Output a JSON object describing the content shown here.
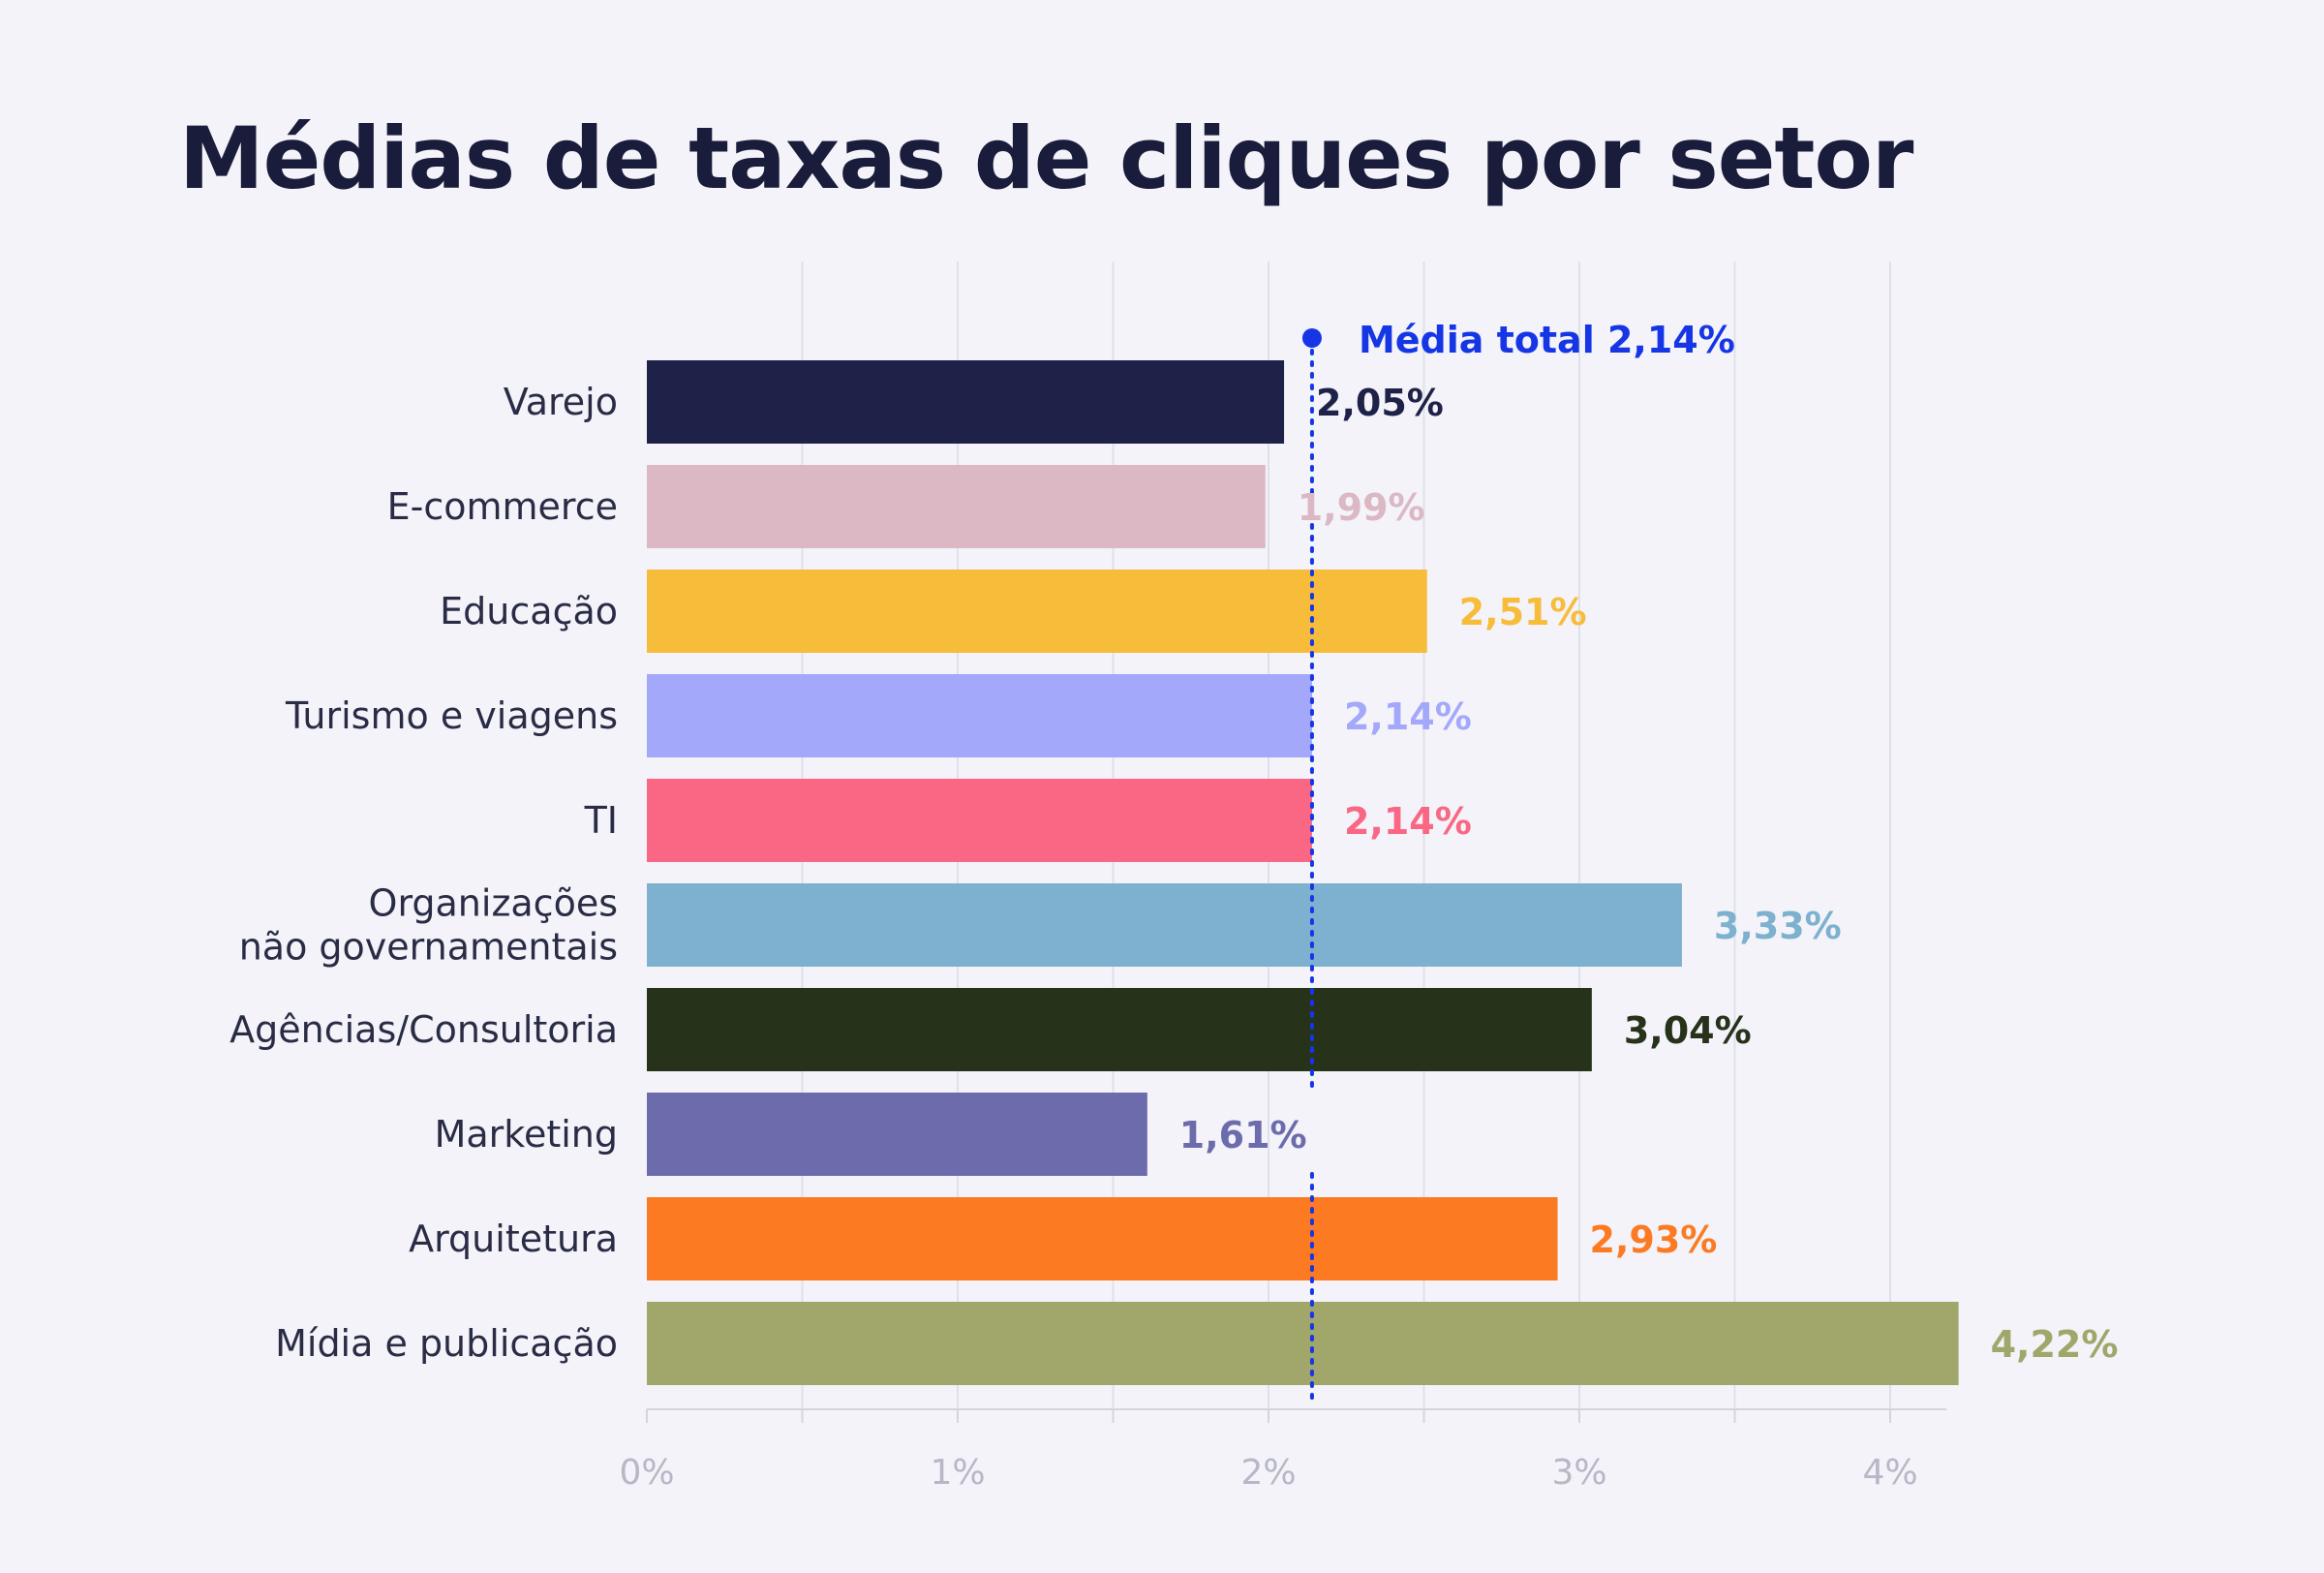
{
  "chart_data": {
    "type": "bar",
    "orientation": "horizontal",
    "title": "Médias de taxas de cliques por setor",
    "categories": [
      [
        "Varejo"
      ],
      [
        "E-commerce"
      ],
      [
        "Educação"
      ],
      [
        "Turismo e viagens"
      ],
      [
        "TI"
      ],
      [
        "Organizações",
        "não governamentais"
      ],
      [
        "Agências/Consultoria"
      ],
      [
        "Marketing"
      ],
      [
        "Arquitetura"
      ],
      [
        "Mídia e publicação"
      ]
    ],
    "values": [
      2.05,
      1.99,
      2.51,
      2.14,
      2.14,
      3.33,
      3.04,
      1.61,
      2.93,
      4.22
    ],
    "value_labels": [
      "2,05%",
      "1,99%",
      "2,51%",
      "2,14%",
      "2,14%",
      "3,33%",
      "3,04%",
      "1,61%",
      "2,93%",
      "4,22%"
    ],
    "colors": [
      "#1f2248",
      "#dbb8c4",
      "#f7bc3a",
      "#a3a8fb",
      "#f96784",
      "#7eb1cf",
      "#26321a",
      "#6c6cad",
      "#fc7a22",
      "#a1a66a"
    ],
    "label_colors": [
      "#1f2248",
      "#dbb8c4",
      "#f7bc3a",
      "#a3a8fb",
      "#f96784",
      "#7eb1cf",
      "#26321a",
      "#6c6cad",
      "#fc7a22",
      "#a1a66a"
    ],
    "x_ticks": [
      "0%",
      "1%",
      "2%",
      "3%",
      "4%"
    ],
    "xlim": [
      0,
      4.4
    ],
    "grid": true,
    "average": {
      "value": 2.14,
      "label": "Média total 2,14%",
      "color": "#1636e6"
    }
  }
}
